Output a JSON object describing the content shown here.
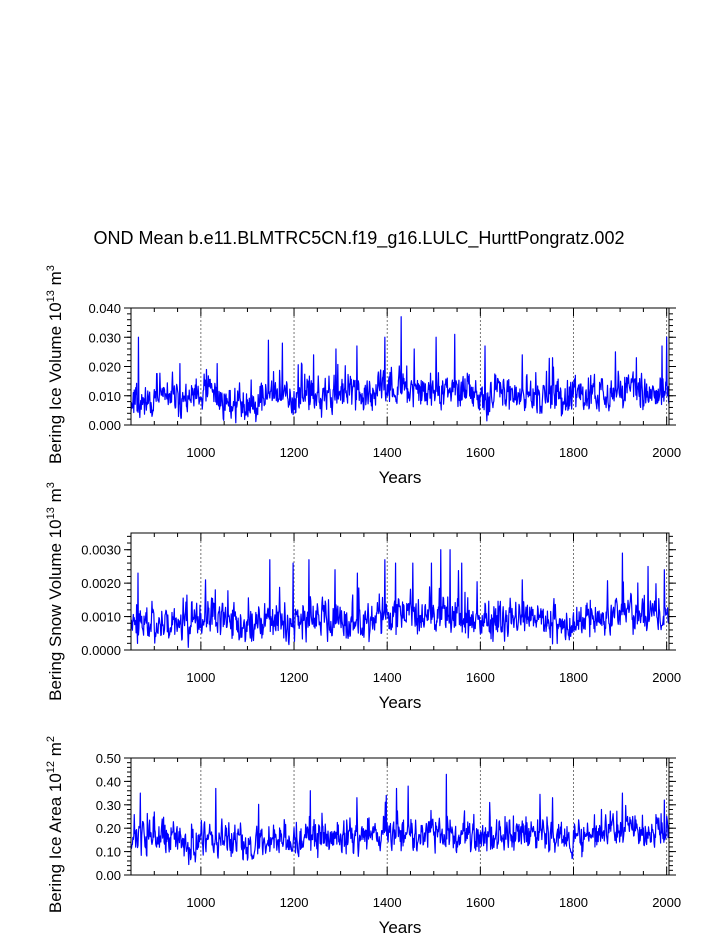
{
  "title": "OND Mean b.e11.BLMTRC5CN.f19_g16.LULC_HurttPongratz.002",
  "colors": {
    "line": "#0000ff",
    "axis": "#000000",
    "grid": "#555555"
  },
  "chart_data": [
    {
      "type": "line",
      "title": "OND Mean b.e11.BLMTRC5CN.f19_g16.LULC_HurttPongratz.002",
      "xlabel": "Years",
      "ylabel_main": "Bering Ice Volume 10",
      "ylabel_exp": "13",
      "ylabel_units": " m",
      "ylabel_units_exp": "3",
      "xlim": [
        850,
        2005
      ],
      "ylim": [
        0,
        0.04
      ],
      "x_ticks": [
        1000,
        1200,
        1400,
        1600,
        1800,
        2000
      ],
      "y_ticks": [
        0,
        0.01,
        0.02,
        0.03,
        0.04
      ],
      "y_tick_labels": [
        "0.000",
        "0.010",
        "0.020",
        "0.030",
        "0.040"
      ],
      "grid": "vertical dashed at major x ticks",
      "series": [
        {
          "name": "Bering Ice Volume",
          "x_start": 850,
          "x_step": 1,
          "base": [
            [
              850,
              0.008
            ],
            [
              900,
              0.009
            ],
            [
              950,
              0.0095
            ],
            [
              1000,
              0.008
            ],
            [
              1010,
              0.012
            ],
            [
              1050,
              0.008
            ],
            [
              1100,
              0.0065
            ],
            [
              1150,
              0.011
            ],
            [
              1200,
              0.009
            ],
            [
              1250,
              0.0095
            ],
            [
              1300,
              0.0105
            ],
            [
              1350,
              0.0095
            ],
            [
              1400,
              0.013
            ],
            [
              1450,
              0.011
            ],
            [
              1500,
              0.011
            ],
            [
              1550,
              0.012
            ],
            [
              1600,
              0.01
            ],
            [
              1650,
              0.011
            ],
            [
              1700,
              0.01
            ],
            [
              1750,
              0.0105
            ],
            [
              1800,
              0.009
            ],
            [
              1850,
              0.011
            ],
            [
              1900,
              0.012
            ],
            [
              1950,
              0.0115
            ],
            [
              2005,
              0.011
            ]
          ],
          "amp": 0.0045,
          "floor": 0.0005,
          "seed": 11,
          "peaks": [
            [
              866,
              0.03
            ],
            [
              955,
              0.021
            ],
            [
              1012,
              0.019
            ],
            [
              1035,
              0.021
            ],
            [
              1145,
              0.029
            ],
            [
              1175,
              0.028
            ],
            [
              1242,
              0.024
            ],
            [
              1290,
              0.026
            ],
            [
              1335,
              0.027
            ],
            [
              1395,
              0.03
            ],
            [
              1430,
              0.037
            ],
            [
              1458,
              0.026
            ],
            [
              1505,
              0.03
            ],
            [
              1545,
              0.031
            ],
            [
              1610,
              0.027
            ],
            [
              1690,
              0.024
            ],
            [
              1755,
              0.023
            ],
            [
              1890,
              0.025
            ],
            [
              1935,
              0.023
            ],
            [
              1990,
              0.027
            ],
            [
              2000,
              0.03
            ]
          ]
        }
      ]
    },
    {
      "type": "line",
      "xlabel": "Years",
      "ylabel_main": "Bering Snow Volume 10",
      "ylabel_exp": "13",
      "ylabel_units": " m",
      "ylabel_units_exp": "3",
      "xlim": [
        850,
        2005
      ],
      "ylim": [
        0,
        0.0035
      ],
      "x_ticks": [
        1000,
        1200,
        1400,
        1600,
        1800,
        2000
      ],
      "y_ticks": [
        0,
        0.001,
        0.002,
        0.003
      ],
      "y_tick_labels": [
        "0.0000",
        "0.0010",
        "0.0020",
        "0.0030"
      ],
      "grid": "vertical dashed at major x ticks",
      "series": [
        {
          "name": "Bering Snow Volume",
          "x_start": 850,
          "x_step": 1,
          "base": [
            [
              850,
              0.0008
            ],
            [
              950,
              0.0008
            ],
            [
              1000,
              0.0008
            ],
            [
              1010,
              0.001
            ],
            [
              1100,
              0.0007
            ],
            [
              1150,
              0.0009
            ],
            [
              1200,
              0.0009
            ],
            [
              1300,
              0.0009
            ],
            [
              1350,
              0.0008
            ],
            [
              1400,
              0.001
            ],
            [
              1450,
              0.0011
            ],
            [
              1500,
              0.0011
            ],
            [
              1550,
              0.001
            ],
            [
              1600,
              0.0009
            ],
            [
              1700,
              0.0009
            ],
            [
              1800,
              0.0008
            ],
            [
              1850,
              0.001
            ],
            [
              1900,
              0.0011
            ],
            [
              1950,
              0.001
            ],
            [
              2005,
              0.001
            ]
          ],
          "amp": 0.00042,
          "floor": 2e-05,
          "seed": 23,
          "peaks": [
            [
              865,
              0.0023
            ],
            [
              1010,
              0.0021
            ],
            [
              1148,
              0.0027
            ],
            [
              1198,
              0.0026
            ],
            [
              1232,
              0.0027
            ],
            [
              1288,
              0.0024
            ],
            [
              1336,
              0.0023
            ],
            [
              1395,
              0.0027
            ],
            [
              1418,
              0.0026
            ],
            [
              1455,
              0.0026
            ],
            [
              1495,
              0.0026
            ],
            [
              1515,
              0.003
            ],
            [
              1535,
              0.003
            ],
            [
              1560,
              0.0026
            ],
            [
              1690,
              0.0021
            ],
            [
              1905,
              0.0029
            ],
            [
              1960,
              0.0025
            ],
            [
              1995,
              0.0024
            ]
          ]
        }
      ]
    },
    {
      "type": "line",
      "xlabel": "Years",
      "ylabel_main": "Bering Ice Area 10",
      "ylabel_exp": "12",
      "ylabel_units": " m",
      "ylabel_units_exp": "2",
      "xlim": [
        850,
        2005
      ],
      "ylim": [
        0,
        0.5
      ],
      "x_ticks": [
        1000,
        1200,
        1400,
        1600,
        1800,
        2000
      ],
      "y_ticks": [
        0,
        0.1,
        0.2,
        0.3,
        0.4,
        0.5
      ],
      "y_tick_labels": [
        "0.00",
        "0.10",
        "0.20",
        "0.30",
        "0.40",
        "0.50"
      ],
      "grid": "vertical dashed at major x ticks",
      "series": [
        {
          "name": "Bering Ice Area",
          "x_start": 850,
          "x_step": 1,
          "base": [
            [
              850,
              0.15
            ],
            [
              950,
              0.15
            ],
            [
              1000,
              0.13
            ],
            [
              1050,
              0.15
            ],
            [
              1100,
              0.12
            ],
            [
              1150,
              0.16
            ],
            [
              1200,
              0.15
            ],
            [
              1300,
              0.16
            ],
            [
              1400,
              0.19
            ],
            [
              1450,
              0.18
            ],
            [
              1500,
              0.18
            ],
            [
              1550,
              0.18
            ],
            [
              1600,
              0.16
            ],
            [
              1700,
              0.17
            ],
            [
              1800,
              0.15
            ],
            [
              1850,
              0.17
            ],
            [
              1900,
              0.19
            ],
            [
              1950,
              0.18
            ],
            [
              2005,
              0.18
            ]
          ],
          "amp": 0.055,
          "floor": 0.02,
          "seed": 37,
          "peaks": [
            [
              870,
              0.35
            ],
            [
              1032,
              0.37
            ],
            [
              1235,
              0.36
            ],
            [
              1335,
              0.33
            ],
            [
              1398,
              0.34
            ],
            [
              1420,
              0.37
            ],
            [
              1445,
              0.38
            ],
            [
              1527,
              0.43
            ],
            [
              1620,
              0.31
            ],
            [
              1755,
              0.33
            ],
            [
              1905,
              0.35
            ],
            [
              1995,
              0.32
            ]
          ]
        }
      ]
    }
  ]
}
